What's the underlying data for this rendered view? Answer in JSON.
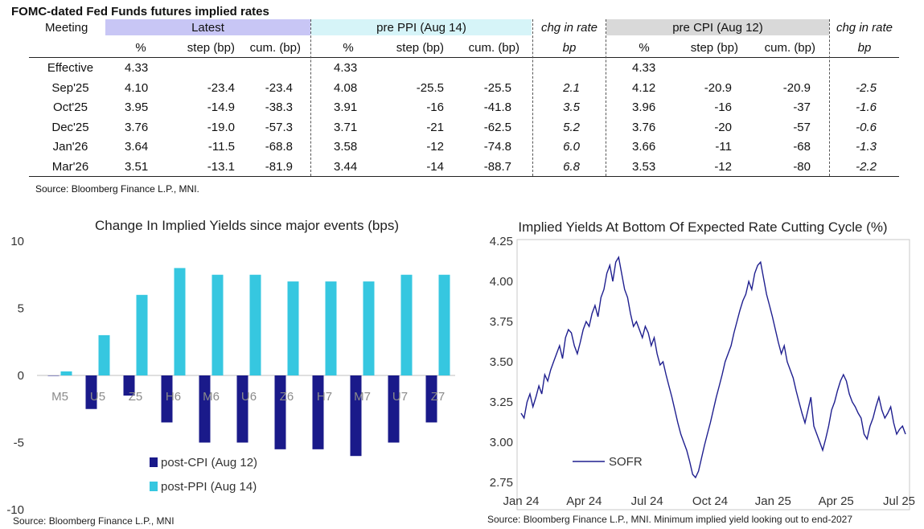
{
  "table": {
    "title": "FOMC-dated Fed Funds futures implied rates",
    "meeting_header": "Meeting",
    "group_headers": [
      "Latest",
      "pre PPI (Aug 14)",
      "chg in rate",
      "pre CPI (Aug 12)",
      "chg in rate"
    ],
    "sub_headers": [
      "%",
      "step (bp)",
      "cum. (bp)",
      "%",
      "step (bp)",
      "cum. (bp)",
      "bp",
      "%",
      "step (bp)",
      "cum. (bp)",
      "bp"
    ],
    "colors": {
      "latest": "#c8c6f5",
      "pre_ppi": "#d6f4f8",
      "pre_cpi": "#d9d9d9"
    },
    "rows": [
      [
        "Effective",
        "4.33",
        "",
        "",
        "4.33",
        "",
        "",
        "",
        "4.33",
        "",
        "",
        ""
      ],
      [
        "Sep'25",
        "4.10",
        "-23.4",
        "-23.4",
        "4.08",
        "-25.5",
        "-25.5",
        "2.1",
        "4.12",
        "-20.9",
        "-20.9",
        "-2.5"
      ],
      [
        "Oct'25",
        "3.95",
        "-14.9",
        "-38.3",
        "3.91",
        "-16",
        "-41.8",
        "3.5",
        "3.96",
        "-16",
        "-37",
        "-1.6"
      ],
      [
        "Dec'25",
        "3.76",
        "-19.0",
        "-57.3",
        "3.71",
        "-21",
        "-62.5",
        "5.2",
        "3.76",
        "-20",
        "-57",
        "-0.6"
      ],
      [
        "Jan'26",
        "3.64",
        "-11.5",
        "-68.8",
        "3.58",
        "-12",
        "-74.8",
        "6.0",
        "3.66",
        "-11",
        "-68",
        "-1.3"
      ],
      [
        "Mar'26",
        "3.51",
        "-13.1",
        "-81.9",
        "3.44",
        "-14",
        "-88.7",
        "6.8",
        "3.53",
        "-12",
        "-80",
        "-2.2"
      ]
    ],
    "source": "Source: Bloomberg Finance L.P., MNI."
  },
  "chart_data": [
    {
      "type": "bar",
      "title": "Change In Implied Yields since major events (bps)",
      "categories": [
        "M5",
        "U5",
        "Z5",
        "H6",
        "M6",
        "U6",
        "Z6",
        "H7",
        "M7",
        "U7",
        "Z7"
      ],
      "series": [
        {
          "name": "post-CPI (Aug 12)",
          "color": "#1a1a8a",
          "values": [
            0,
            -2.5,
            -1.5,
            -3.5,
            -5,
            -5,
            -5.5,
            -5.5,
            -6,
            -5,
            -3.5
          ]
        },
        {
          "name": "post-PPI (Aug 14)",
          "color": "#36c7e0",
          "values": [
            0.3,
            3,
            6,
            8,
            7.5,
            7.5,
            7,
            7,
            7,
            7.5,
            7.5
          ]
        }
      ],
      "ylim": [
        -10,
        10
      ],
      "yticks": [
        -10,
        -5,
        0,
        5,
        10
      ],
      "legend": "bottom-center",
      "source": "Source: Bloomberg Finance L.P., MNI"
    },
    {
      "type": "line",
      "title": "Implied Yields At Bottom Of Expected Rate Cutting Cycle (%)",
      "series": [
        {
          "name": "SOFR",
          "color": "#1f1f8f",
          "x_start": "2024-01-02",
          "x_end": "2025-08-15",
          "values": [
            3.18,
            3.15,
            3.25,
            3.3,
            3.22,
            3.28,
            3.35,
            3.3,
            3.42,
            3.38,
            3.45,
            3.5,
            3.55,
            3.6,
            3.52,
            3.65,
            3.7,
            3.68,
            3.6,
            3.55,
            3.62,
            3.7,
            3.75,
            3.72,
            3.8,
            3.85,
            3.78,
            3.9,
            3.95,
            4.05,
            4.1,
            4.0,
            4.12,
            4.15,
            4.05,
            3.95,
            3.9,
            3.8,
            3.72,
            3.75,
            3.7,
            3.65,
            3.72,
            3.68,
            3.6,
            3.65,
            3.55,
            3.48,
            3.5,
            3.42,
            3.35,
            3.28,
            3.2,
            3.12,
            3.05,
            3.0,
            2.95,
            2.88,
            2.8,
            2.78,
            2.82,
            2.9,
            2.98,
            3.05,
            3.12,
            3.2,
            3.28,
            3.35,
            3.42,
            3.5,
            3.55,
            3.6,
            3.68,
            3.75,
            3.82,
            3.88,
            3.92,
            4.0,
            3.95,
            4.05,
            4.1,
            4.12,
            4.02,
            3.92,
            3.85,
            3.78,
            3.7,
            3.62,
            3.55,
            3.6,
            3.5,
            3.45,
            3.4,
            3.32,
            3.25,
            3.18,
            3.12,
            3.2,
            3.28,
            3.1,
            3.05,
            3.0,
            2.95,
            3.02,
            3.1,
            3.2,
            3.25,
            3.32,
            3.38,
            3.42,
            3.38,
            3.3,
            3.25,
            3.22,
            3.18,
            3.15,
            3.05,
            3.02,
            3.1,
            3.15,
            3.22,
            3.28,
            3.2,
            3.15,
            3.18,
            3.22,
            3.12,
            3.05,
            3.08,
            3.1,
            3.05
          ]
        }
      ],
      "x_ticks": [
        "Jan 24",
        "Apr 24",
        "Jul 24",
        "Oct 24",
        "Jan 25",
        "Apr 25",
        "Jul 25"
      ],
      "y_ticks": [
        "4.25",
        "4.00",
        "3.75",
        "3.50",
        "3.25",
        "3.00",
        "2.75"
      ],
      "ylim": [
        2.75,
        4.25
      ],
      "legend": "bottom-left",
      "source": "Source: Bloomberg Finance L.P., MNI. Minimum implied yield looking out to end-2027"
    }
  ]
}
